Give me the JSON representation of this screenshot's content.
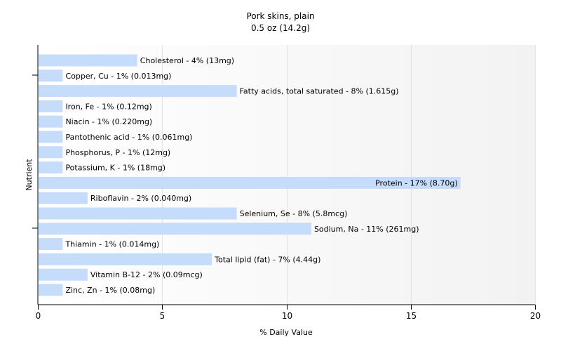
{
  "chart_data": {
    "type": "bar",
    "orientation": "horizontal",
    "title": "Pork skins, plain",
    "subtitle": "0.5 oz (14.2g)",
    "xlabel": "% Daily Value",
    "ylabel": "Nutrient",
    "xlim": [
      0,
      20
    ],
    "xticks": [
      "0",
      "5",
      "10",
      "15",
      "20"
    ],
    "grid": true,
    "bar_color": "#c6dcfb",
    "categories": [
      "Cholesterol",
      "Copper, Cu",
      "Fatty acids, total saturated",
      "Iron, Fe",
      "Niacin",
      "Pantothenic acid",
      "Phosphorus, P",
      "Potassium, K",
      "Protein",
      "Riboflavin",
      "Selenium, Se",
      "Sodium, Na",
      "Thiamin",
      "Total lipid (fat)",
      "Vitamin B-12",
      "Zinc, Zn"
    ],
    "values": [
      4,
      1,
      8,
      1,
      1,
      1,
      1,
      1,
      17,
      2,
      8,
      11,
      1,
      7,
      2,
      1
    ],
    "labels": [
      "Cholesterol - 4% (13mg)",
      "Copper, Cu - 1% (0.013mg)",
      "Fatty acids, total saturated - 8% (1.615g)",
      "Iron, Fe - 1% (0.12mg)",
      "Niacin - 1% (0.220mg)",
      "Pantothenic acid - 1% (0.061mg)",
      "Phosphorus, P - 1% (12mg)",
      "Potassium, K - 1% (18mg)",
      "Protein - 17% (8.70g)",
      "Riboflavin - 2% (0.040mg)",
      "Selenium, Se - 8% (5.8mcg)",
      "Sodium, Na - 11% (261mg)",
      "Thiamin - 1% (0.014mg)",
      "Total lipid (fat) - 7% (4.44g)",
      "Vitamin B-12 - 2% (0.09mcg)",
      "Zinc, Zn - 1% (0.08mg)"
    ]
  }
}
